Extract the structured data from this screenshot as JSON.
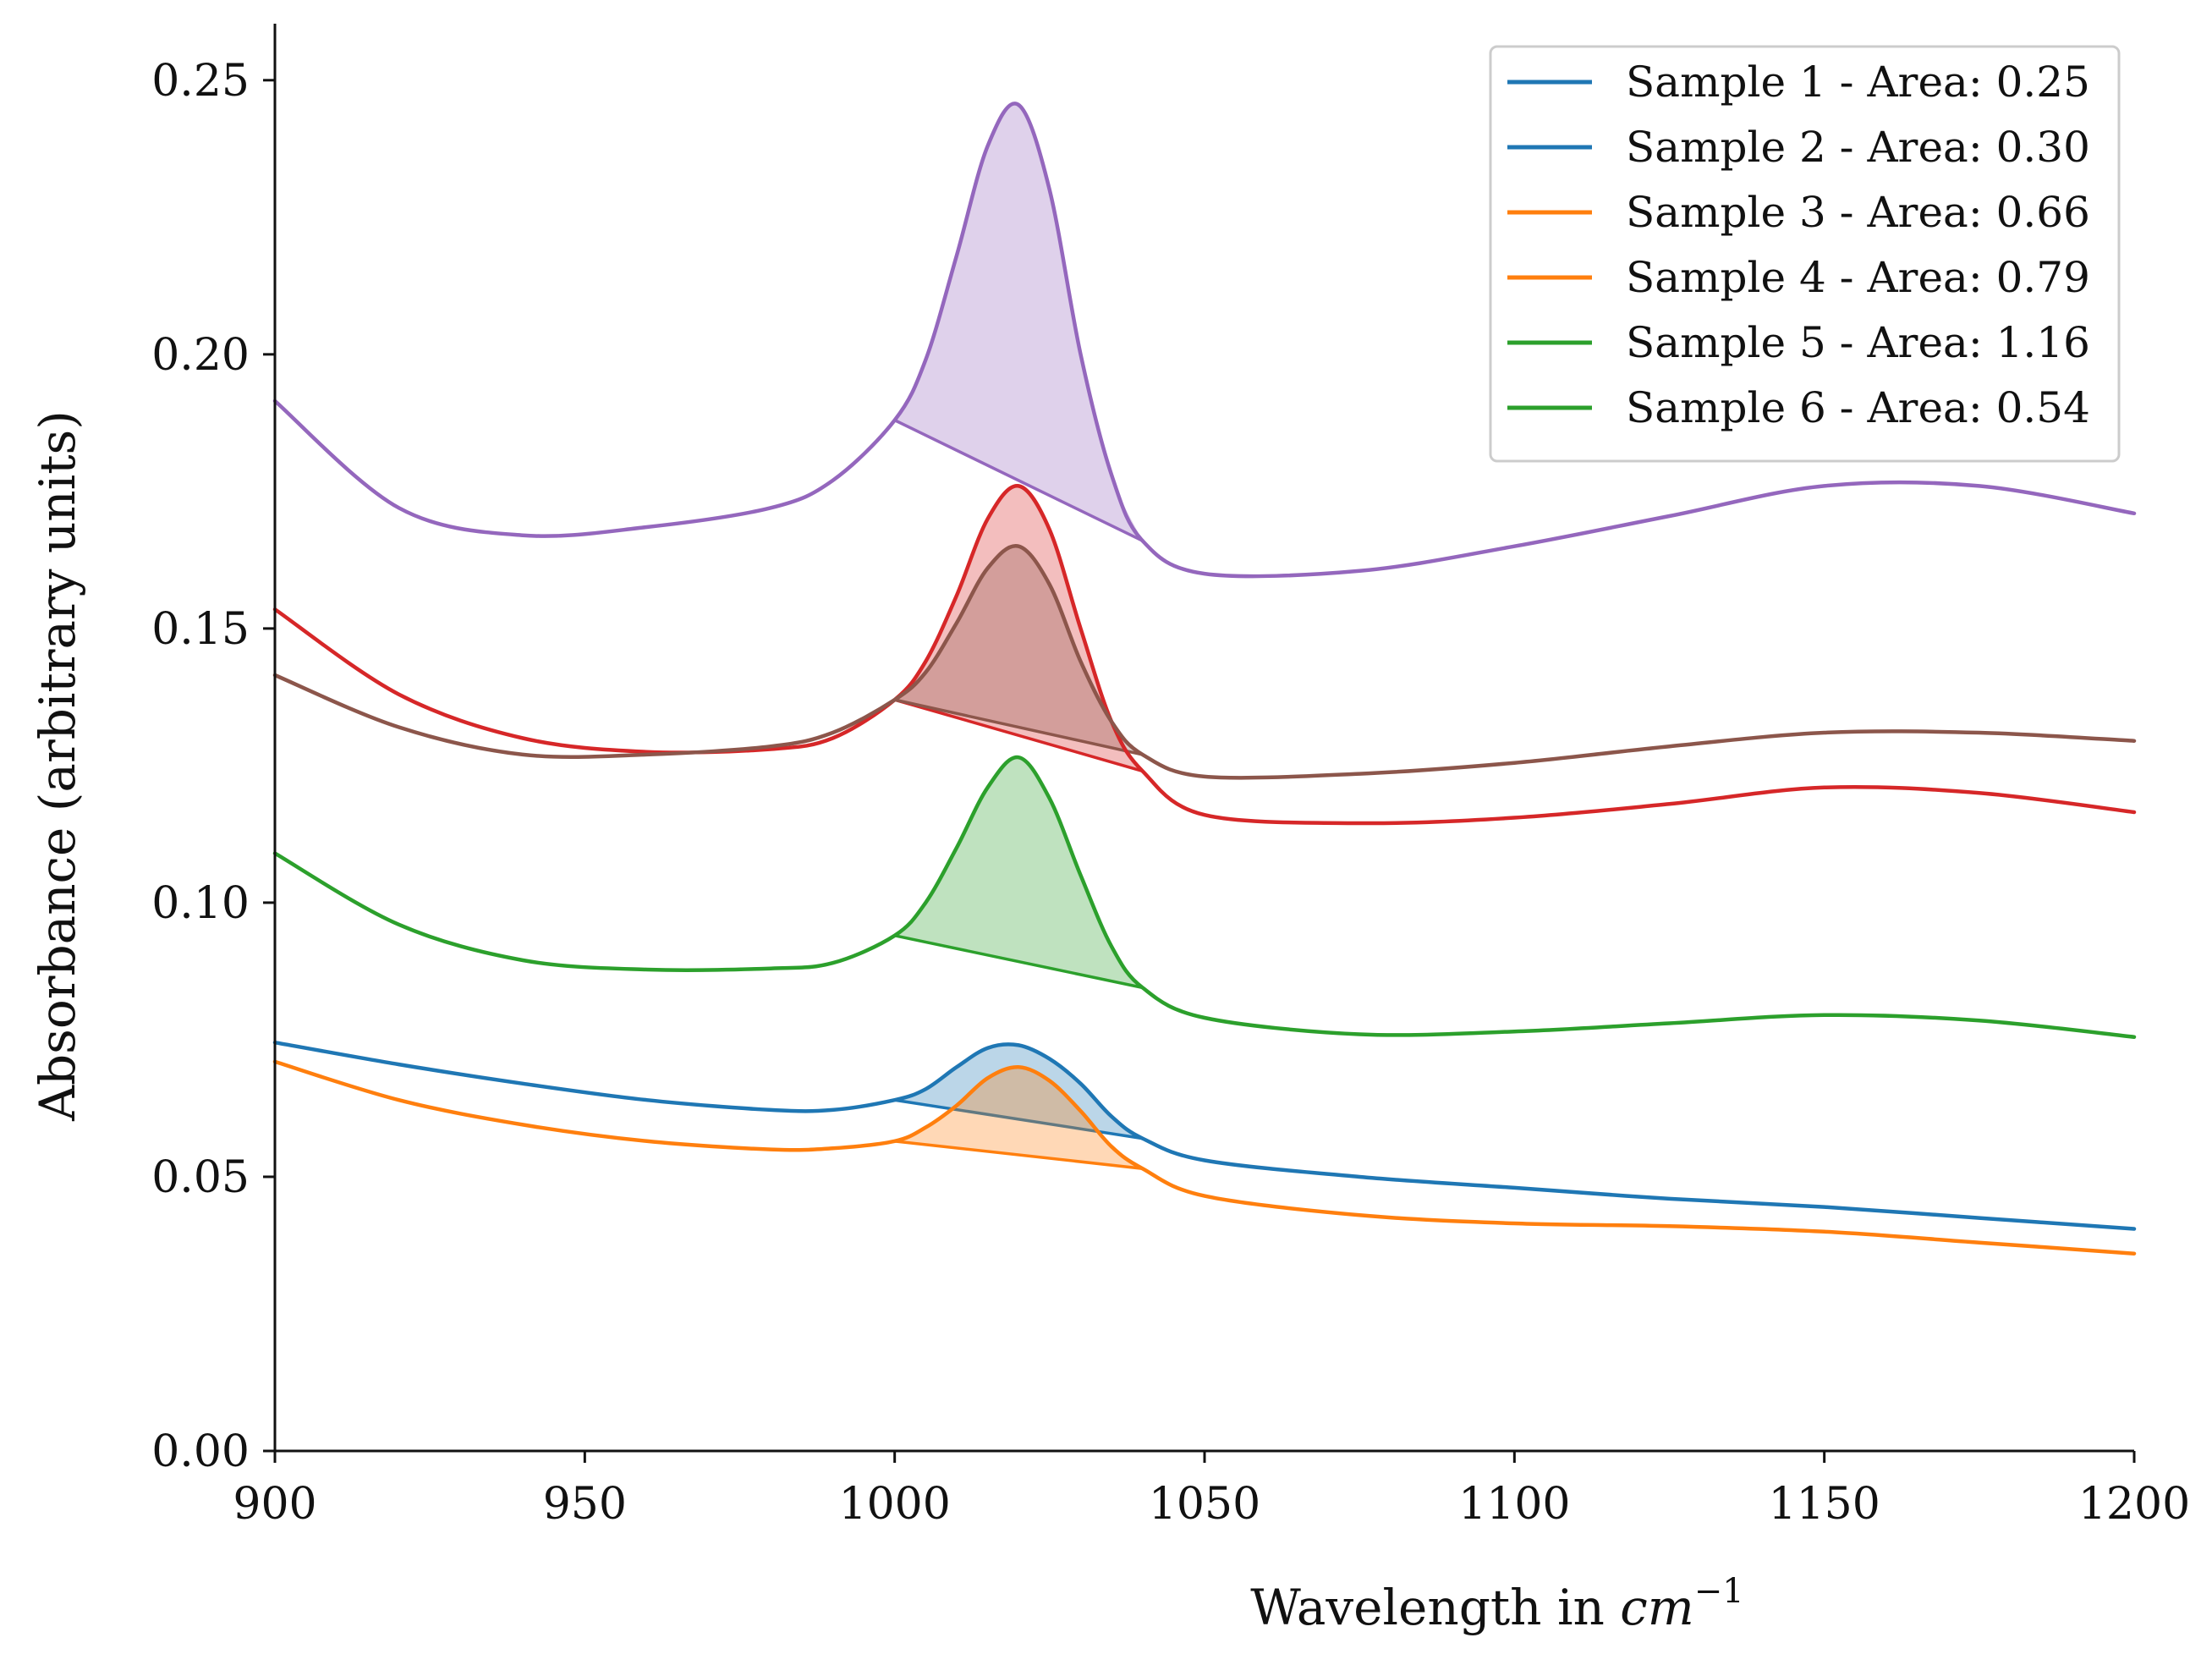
{
  "chart_data": {
    "type": "line",
    "title": "",
    "xlabel": "Wavelength in ",
    "xlabel_math": "cm",
    "xlabel_sup": "−1",
    "ylabel": "Absorbance (arbitrary units)",
    "xlim": [
      900,
      1200
    ],
    "ylim": [
      0,
      0.26
    ],
    "xticks": [
      900,
      950,
      1000,
      1050,
      1100,
      1150,
      1200
    ],
    "xtick_labels": [
      "900",
      "950",
      "1000",
      "1050",
      "1100",
      "1150",
      "1200"
    ],
    "yticks": [
      0,
      0.05,
      0.1,
      0.15,
      0.2,
      0.25
    ],
    "ytick_labels": [
      "0.00",
      "0.05",
      "0.10",
      "0.15",
      "0.20",
      "0.25"
    ],
    "legend_position": "top-right",
    "shaded_region": [
      1000,
      1040
    ],
    "series": [
      {
        "name": "Sample 1 - Area: 0.25",
        "legend_color": "#1f77b4",
        "line_color": "#1f77b4",
        "points": [
          [
            900,
            0.0745
          ],
          [
            920,
            0.0705
          ],
          [
            940,
            0.067
          ],
          [
            960,
            0.064
          ],
          [
            980,
            0.0622
          ],
          [
            990,
            0.0622
          ],
          [
            1000,
            0.064
          ],
          [
            1005,
            0.066
          ],
          [
            1010,
            0.07
          ],
          [
            1015,
            0.0735
          ],
          [
            1020,
            0.074
          ],
          [
            1025,
            0.0715
          ],
          [
            1030,
            0.067
          ],
          [
            1035,
            0.061
          ],
          [
            1040,
            0.057
          ],
          [
            1050,
            0.053
          ],
          [
            1075,
            0.05
          ],
          [
            1100,
            0.048
          ],
          [
            1125,
            0.046
          ],
          [
            1150,
            0.0445
          ],
          [
            1175,
            0.0425
          ],
          [
            1200,
            0.0405
          ]
        ]
      },
      {
        "name": "Sample 2 - Area: 0.30",
        "legend_color": "#1f77b4",
        "line_color": "#ff7f0e",
        "points": [
          [
            900,
            0.071
          ],
          [
            920,
            0.064
          ],
          [
            940,
            0.0595
          ],
          [
            960,
            0.0565
          ],
          [
            980,
            0.055
          ],
          [
            990,
            0.0552
          ],
          [
            1000,
            0.0565
          ],
          [
            1005,
            0.059
          ],
          [
            1010,
            0.063
          ],
          [
            1015,
            0.068
          ],
          [
            1020,
            0.07
          ],
          [
            1025,
            0.0675
          ],
          [
            1030,
            0.062
          ],
          [
            1035,
            0.0555
          ],
          [
            1040,
            0.0515
          ],
          [
            1050,
            0.0465
          ],
          [
            1075,
            0.043
          ],
          [
            1100,
            0.0415
          ],
          [
            1125,
            0.041
          ],
          [
            1150,
            0.04
          ],
          [
            1175,
            0.038
          ],
          [
            1200,
            0.036
          ]
        ]
      },
      {
        "name": "Sample 3 - Area: 0.66",
        "legend_color": "#ff7f0e",
        "line_color": "#2ca02c",
        "points": [
          [
            900,
            0.109
          ],
          [
            920,
            0.096
          ],
          [
            940,
            0.0895
          ],
          [
            960,
            0.0878
          ],
          [
            980,
            0.088
          ],
          [
            990,
            0.089
          ],
          [
            1000,
            0.094
          ],
          [
            1005,
            0.1
          ],
          [
            1010,
            0.11
          ],
          [
            1015,
            0.121
          ],
          [
            1020,
            0.1265
          ],
          [
            1025,
            0.119
          ],
          [
            1030,
            0.105
          ],
          [
            1035,
            0.092
          ],
          [
            1040,
            0.0845
          ],
          [
            1050,
            0.079
          ],
          [
            1075,
            0.076
          ],
          [
            1100,
            0.0765
          ],
          [
            1125,
            0.078
          ],
          [
            1150,
            0.0795
          ],
          [
            1175,
            0.0785
          ],
          [
            1200,
            0.0755
          ]
        ]
      },
      {
        "name": "Sample 4 - Area: 0.79",
        "legend_color": "#ff7f0e",
        "line_color": "#d62728",
        "points": [
          [
            900,
            0.1535
          ],
          [
            920,
            0.138
          ],
          [
            940,
            0.13
          ],
          [
            960,
            0.1275
          ],
          [
            980,
            0.128
          ],
          [
            990,
            0.13
          ],
          [
            1000,
            0.137
          ],
          [
            1005,
            0.144
          ],
          [
            1010,
            0.156
          ],
          [
            1015,
            0.17
          ],
          [
            1020,
            0.176
          ],
          [
            1025,
            0.168
          ],
          [
            1030,
            0.15
          ],
          [
            1035,
            0.133
          ],
          [
            1040,
            0.124
          ],
          [
            1050,
            0.116
          ],
          [
            1075,
            0.1145
          ],
          [
            1100,
            0.1155
          ],
          [
            1125,
            0.118
          ],
          [
            1150,
            0.121
          ],
          [
            1175,
            0.12
          ],
          [
            1200,
            0.1165
          ]
        ]
      },
      {
        "name": "Sample 5 - Area: 1.16",
        "legend_color": "#2ca02c",
        "line_color": "#8c564b",
        "points": [
          [
            900,
            0.1415
          ],
          [
            920,
            0.132
          ],
          [
            940,
            0.127
          ],
          [
            960,
            0.127
          ],
          [
            980,
            0.1285
          ],
          [
            990,
            0.131
          ],
          [
            1000,
            0.137
          ],
          [
            1005,
            0.142
          ],
          [
            1010,
            0.151
          ],
          [
            1015,
            0.161
          ],
          [
            1020,
            0.165
          ],
          [
            1025,
            0.158
          ],
          [
            1030,
            0.144
          ],
          [
            1035,
            0.133
          ],
          [
            1040,
            0.127
          ],
          [
            1050,
            0.123
          ],
          [
            1075,
            0.1235
          ],
          [
            1100,
            0.1255
          ],
          [
            1125,
            0.1285
          ],
          [
            1150,
            0.131
          ],
          [
            1175,
            0.131
          ],
          [
            1200,
            0.1295
          ]
        ]
      },
      {
        "name": "Sample 6 - Area: 0.54",
        "legend_color": "#2ca02c",
        "line_color": "#9467bd",
        "points": [
          [
            900,
            0.1915
          ],
          [
            920,
            0.172
          ],
          [
            940,
            0.167
          ],
          [
            960,
            0.1685
          ],
          [
            980,
            0.172
          ],
          [
            990,
            0.177
          ],
          [
            1000,
            0.188
          ],
          [
            1005,
            0.199
          ],
          [
            1010,
            0.218
          ],
          [
            1015,
            0.238
          ],
          [
            1020,
            0.2455
          ],
          [
            1025,
            0.23
          ],
          [
            1030,
            0.2
          ],
          [
            1035,
            0.178
          ],
          [
            1040,
            0.166
          ],
          [
            1050,
            0.16
          ],
          [
            1075,
            0.1605
          ],
          [
            1100,
            0.165
          ],
          [
            1125,
            0.1705
          ],
          [
            1150,
            0.176
          ],
          [
            1175,
            0.176
          ],
          [
            1200,
            0.171
          ]
        ]
      }
    ]
  }
}
